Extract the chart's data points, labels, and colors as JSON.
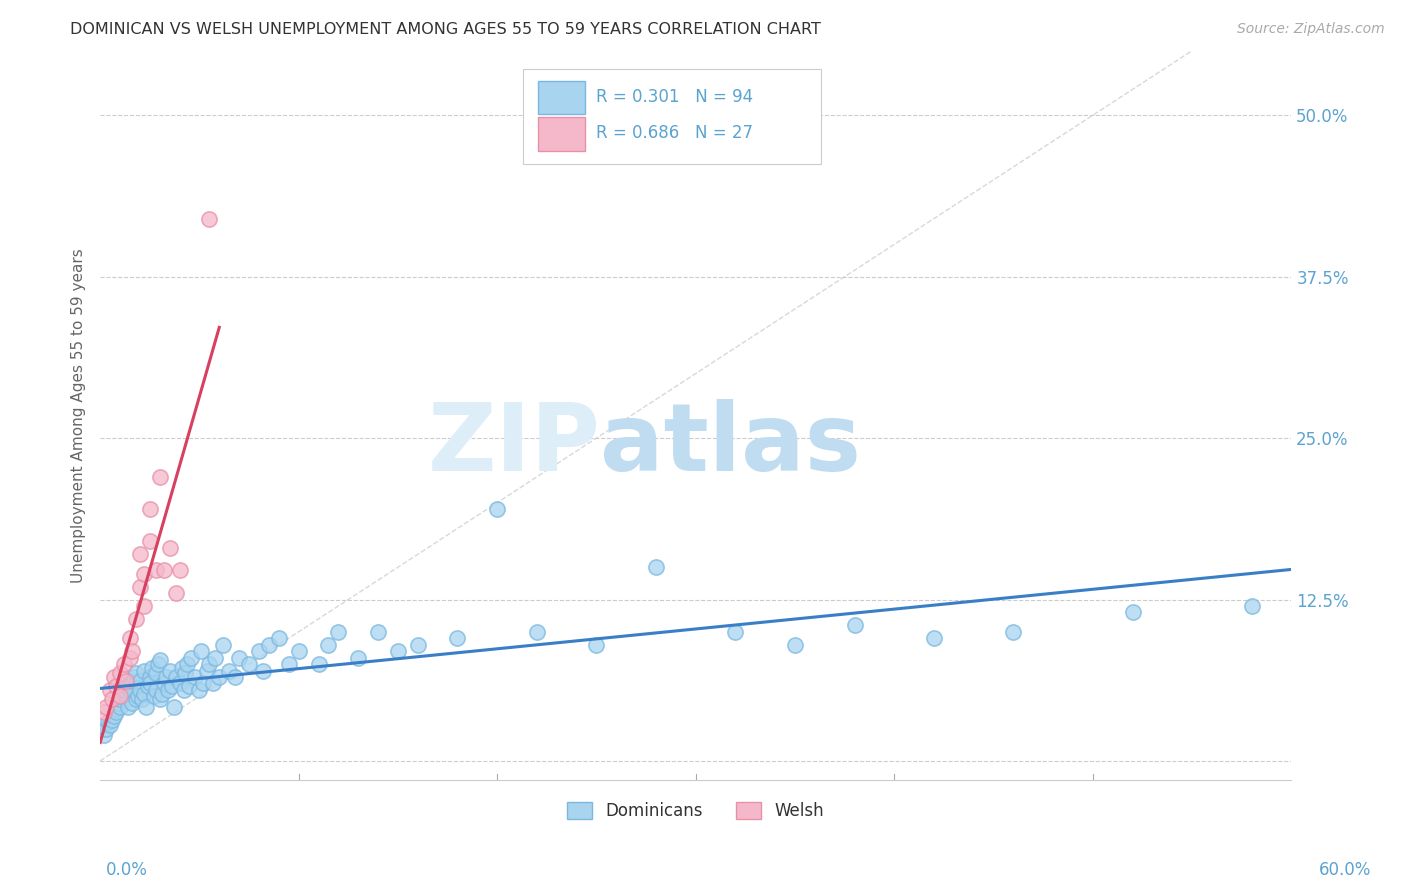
{
  "title": "DOMINICAN VS WELSH UNEMPLOYMENT AMONG AGES 55 TO 59 YEARS CORRELATION CHART",
  "source": "Source: ZipAtlas.com",
  "ylabel": "Unemployment Among Ages 55 to 59 years",
  "xlim": [
    0.0,
    0.6
  ],
  "ylim": [
    -0.015,
    0.55
  ],
  "yticks": [
    0.0,
    0.125,
    0.25,
    0.375,
    0.5
  ],
  "yticklabels": [
    "",
    "12.5%",
    "25.0%",
    "37.5%",
    "50.0%"
  ],
  "x_left_label": "0.0%",
  "x_right_label": "60.0%",
  "dominican_color": "#A8D4F0",
  "welsh_color": "#F5B8CA",
  "dominican_edge": "#7BB8E0",
  "welsh_edge": "#E890A8",
  "trendline_dominican_color": "#3A7EC8",
  "trendline_welsh_color": "#D84060",
  "diagonal_color": "#C8C8C8",
  "R_dominican": 0.301,
  "N_dominican": 94,
  "R_welsh": 0.686,
  "N_welsh": 27,
  "legend_label_dominican": "Dominicans",
  "legend_label_welsh": "Welsh",
  "background_color": "#FFFFFF",
  "grid_color": "#CCCCCC",
  "title_color": "#333333",
  "axis_label_color": "#666666",
  "tick_color": "#5BA3D0",
  "watermark_zip": "ZIP",
  "watermark_atlas": "atlas",
  "watermark_zip_color": "#DDEEF8",
  "watermark_atlas_color": "#C0DCF0",
  "dominican_x": [
    0.002,
    0.003,
    0.004,
    0.005,
    0.006,
    0.007,
    0.008,
    0.008,
    0.009,
    0.01,
    0.01,
    0.011,
    0.012,
    0.012,
    0.013,
    0.014,
    0.015,
    0.015,
    0.016,
    0.016,
    0.017,
    0.018,
    0.018,
    0.019,
    0.02,
    0.02,
    0.021,
    0.022,
    0.022,
    0.023,
    0.024,
    0.025,
    0.025,
    0.026,
    0.027,
    0.028,
    0.028,
    0.029,
    0.03,
    0.03,
    0.031,
    0.032,
    0.033,
    0.034,
    0.035,
    0.036,
    0.037,
    0.038,
    0.04,
    0.041,
    0.042,
    0.043,
    0.044,
    0.045,
    0.046,
    0.048,
    0.05,
    0.051,
    0.052,
    0.054,
    0.055,
    0.057,
    0.058,
    0.06,
    0.062,
    0.065,
    0.068,
    0.07,
    0.075,
    0.08,
    0.082,
    0.085,
    0.09,
    0.095,
    0.1,
    0.11,
    0.115,
    0.12,
    0.13,
    0.14,
    0.15,
    0.16,
    0.18,
    0.2,
    0.22,
    0.25,
    0.28,
    0.32,
    0.35,
    0.38,
    0.42,
    0.46,
    0.52,
    0.58
  ],
  "dominican_y": [
    0.02,
    0.025,
    0.03,
    0.028,
    0.032,
    0.035,
    0.04,
    0.038,
    0.045,
    0.042,
    0.048,
    0.05,
    0.052,
    0.055,
    0.058,
    0.042,
    0.06,
    0.055,
    0.062,
    0.045,
    0.065,
    0.048,
    0.068,
    0.05,
    0.062,
    0.055,
    0.048,
    0.07,
    0.052,
    0.042,
    0.058,
    0.065,
    0.06,
    0.072,
    0.05,
    0.068,
    0.055,
    0.075,
    0.048,
    0.078,
    0.052,
    0.06,
    0.065,
    0.055,
    0.07,
    0.058,
    0.042,
    0.065,
    0.06,
    0.072,
    0.055,
    0.068,
    0.075,
    0.058,
    0.08,
    0.065,
    0.055,
    0.085,
    0.06,
    0.07,
    0.075,
    0.06,
    0.08,
    0.065,
    0.09,
    0.07,
    0.065,
    0.08,
    0.075,
    0.085,
    0.07,
    0.09,
    0.095,
    0.075,
    0.085,
    0.075,
    0.09,
    0.1,
    0.08,
    0.1,
    0.085,
    0.09,
    0.095,
    0.195,
    0.1,
    0.09,
    0.15,
    0.1,
    0.09,
    0.105,
    0.095,
    0.1,
    0.115,
    0.12
  ],
  "welsh_x": [
    0.002,
    0.003,
    0.005,
    0.006,
    0.007,
    0.008,
    0.01,
    0.01,
    0.012,
    0.013,
    0.015,
    0.015,
    0.016,
    0.018,
    0.02,
    0.02,
    0.022,
    0.022,
    0.025,
    0.025,
    0.028,
    0.03,
    0.032,
    0.035,
    0.038,
    0.04,
    0.055
  ],
  "welsh_y": [
    0.038,
    0.042,
    0.055,
    0.048,
    0.065,
    0.058,
    0.05,
    0.068,
    0.075,
    0.062,
    0.08,
    0.095,
    0.085,
    0.11,
    0.135,
    0.16,
    0.145,
    0.12,
    0.195,
    0.17,
    0.148,
    0.22,
    0.148,
    0.165,
    0.13,
    0.148,
    0.42
  ]
}
